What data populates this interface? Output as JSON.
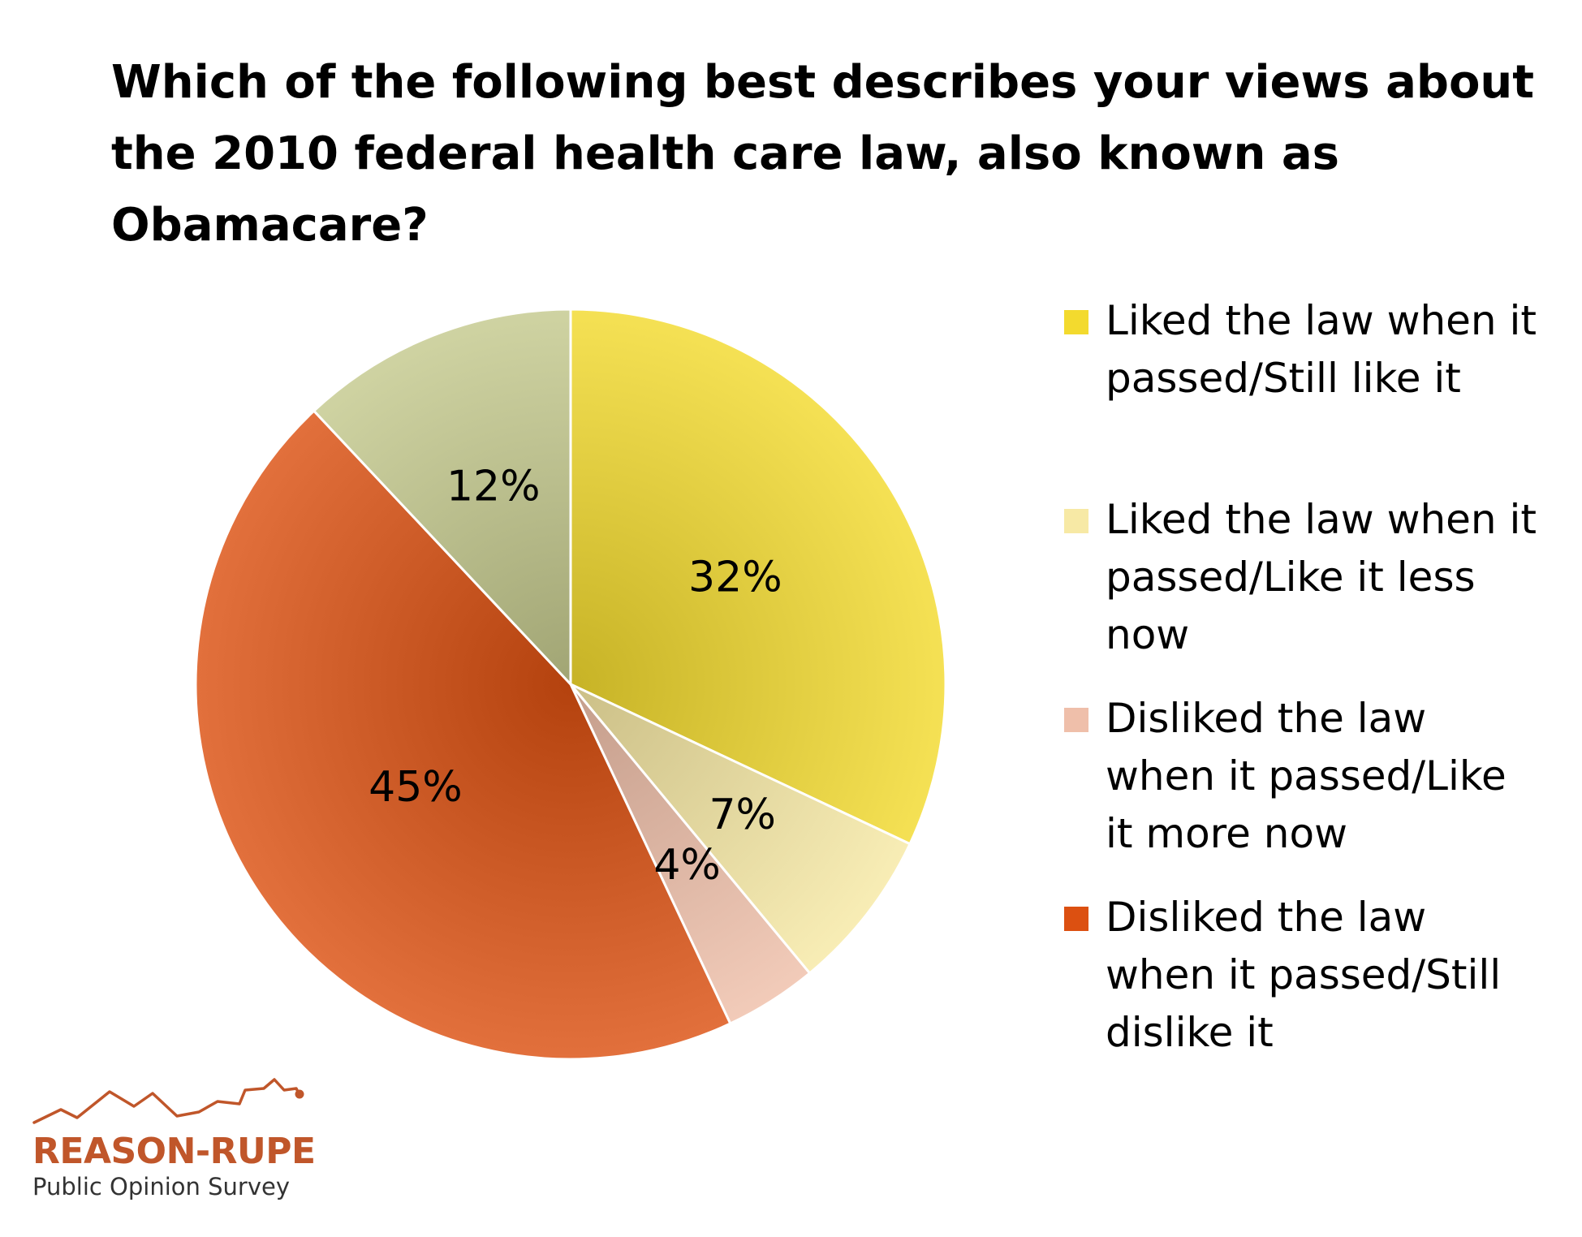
{
  "title_lines": [
    "Which of the following best describes your views about",
    "the 2010 federal health care law, also known as",
    "Obamacare?"
  ],
  "chart_data": {
    "type": "pie",
    "title": "Which of the following best describes your views about the 2010 federal health care law, also known as Obamacare?",
    "unit": "%",
    "slices": [
      {
        "label": "Liked the law when it passed/Still like it",
        "value": 32,
        "data_label": "32%",
        "color": "#f3da2e"
      },
      {
        "label": "Liked the law when it passed/Like it less now",
        "value": 7,
        "data_label": "7%",
        "color": "#f7e9a5"
      },
      {
        "label": "Disliked the law when it passed/Like it more now",
        "value": 4,
        "data_label": "4%",
        "color": "#efbfaa"
      },
      {
        "label": "Disliked the law when it passed/Still dislike it",
        "value": 45,
        "data_label": "45%",
        "color": "#dc5011"
      },
      {
        "label": "",
        "value": 12,
        "data_label": "12%",
        "color": "#c4c98e"
      }
    ],
    "legend_position": "right"
  },
  "legend": [
    {
      "lines": [
        "Liked the law when it",
        "passed/Still like it"
      ],
      "color": "#f3da2e"
    },
    {
      "lines": [
        "Liked the law when it",
        "passed/Like it less",
        "now"
      ],
      "color": "#f7e9a5"
    },
    {
      "lines": [
        "Disliked the law",
        "when it passed/Like",
        "it more now"
      ],
      "color": "#efbfaa"
    },
    {
      "lines": [
        "Disliked the law",
        "when it passed/Still",
        "dislike it"
      ],
      "color": "#dc5011"
    }
  ],
  "logo": {
    "brand": "REASON-RUPE",
    "subtitle": "Public Opinion Survey",
    "color": "#c0562a"
  }
}
